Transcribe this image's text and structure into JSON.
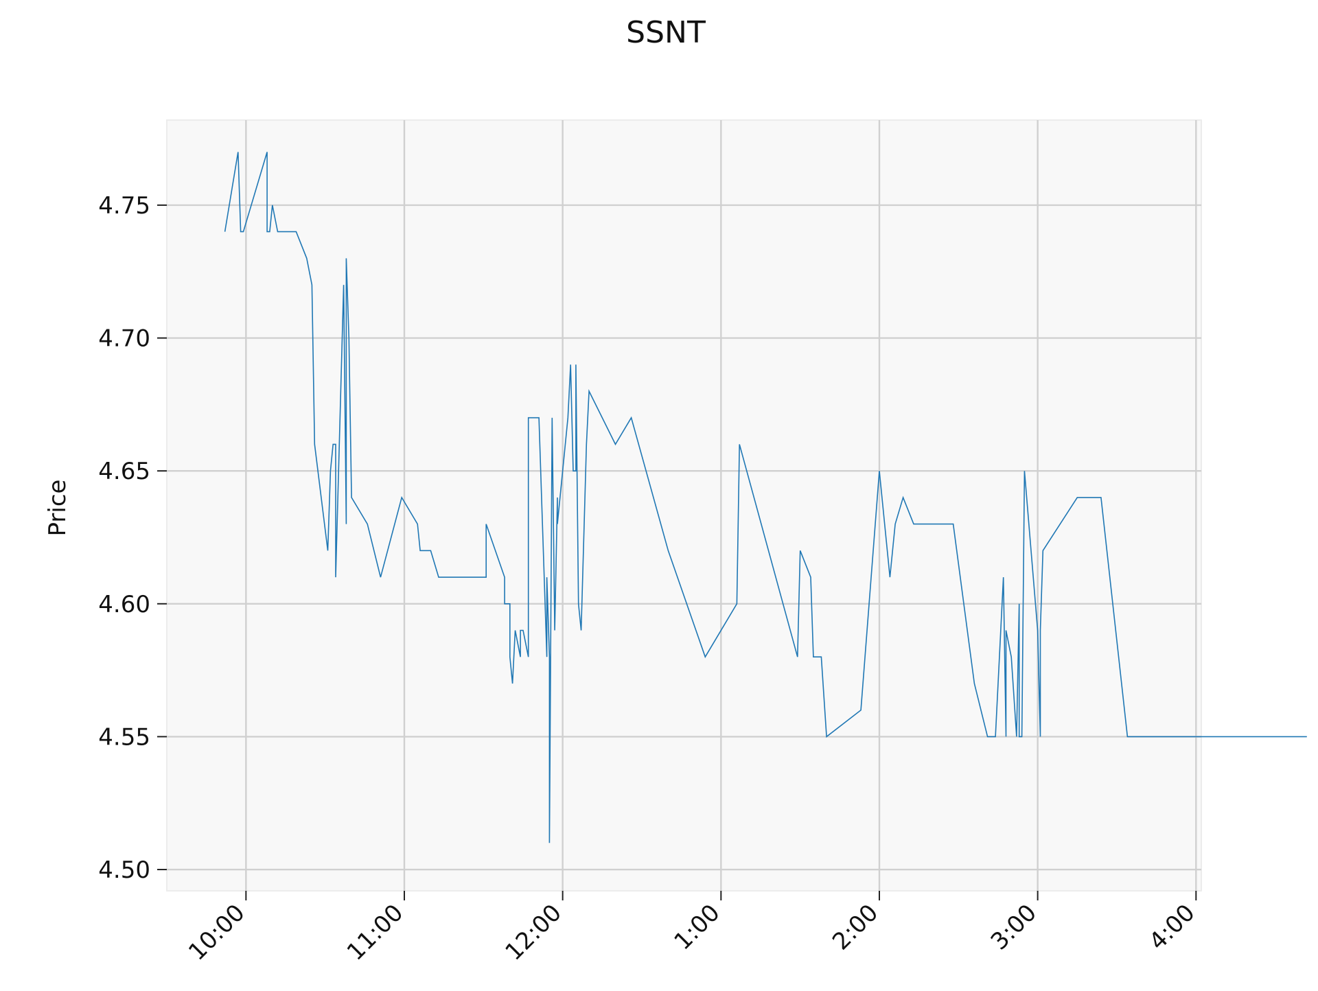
{
  "chart_data": {
    "type": "line",
    "title": "SSNT",
    "xlabel": "",
    "ylabel": "Price",
    "x_axis": "time of day",
    "ylim": [
      4.492,
      4.782
    ],
    "xlim": [
      "9:30",
      "4:02"
    ],
    "yticks": [
      4.5,
      4.55,
      4.6,
      4.65,
      4.7,
      4.75
    ],
    "ytick_labels": [
      "4.50",
      "4.55",
      "4.60",
      "4.65",
      "4.70",
      "4.75"
    ],
    "xticks": [
      "10:00",
      "11:00",
      "12:00",
      "1:00",
      "2:00",
      "3:00",
      "4:00"
    ],
    "xtick_labels": [
      "10:00",
      "11:00",
      "12:00",
      "1:00",
      "2:00",
      "3:00",
      "4:00"
    ],
    "grid": true,
    "legend": "none",
    "background_color": "#f8f8f8",
    "line_color": "#1f77b4",
    "grid_color": "#d0d0d0",
    "series": [
      {
        "x": [
          "9:52",
          "9:57",
          "9:58",
          "9:59",
          "10:08",
          "10:08",
          "10:09",
          "10:10",
          "10:12",
          "10:19",
          "10:23",
          "10:25",
          "10:26",
          "10:26",
          "10:31",
          "10:32",
          "10:33",
          "10:34",
          "10:34",
          "10:37",
          "10:38",
          "10:38",
          "10:39",
          "10:40",
          "10:46",
          "10:51",
          "10:59",
          "11:05",
          "11:06",
          "11:10",
          "11:13",
          "11:20",
          "11:31",
          "11:31",
          "11:38",
          "11:38",
          "11:40",
          "11:40",
          "11:41",
          "11:42",
          "11:42",
          "11:44",
          "11:44",
          "11:45",
          "11:47",
          "11:47",
          "11:51",
          "11:54",
          "11:54",
          "11:55",
          "11:55",
          "11:56",
          "11:57",
          "11:58",
          "11:58",
          "12:02",
          "12:03",
          "12:04",
          "12:05",
          "12:05",
          "12:06",
          "12:07",
          "12:09",
          "12:10",
          "12:20",
          "12:26",
          "12:40",
          "12:54",
          "12:54",
          "13:06",
          "13:07",
          "13:29",
          "13:30",
          "13:34",
          "13:35",
          "13:38",
          "13:40",
          "13:40",
          "13:53",
          "14:00",
          "14:04",
          "14:06",
          "14:09",
          "14:13",
          "14:21",
          "14:25",
          "14:26",
          "14:26",
          "14:28",
          "14:36",
          "14:41",
          "14:43",
          "14:44",
          "14:47",
          "14:48",
          "14:48",
          "14:50",
          "14:52",
          "14:53",
          "14:53",
          "14:54",
          "14:55",
          "15:00",
          "15:01",
          "15:01",
          "15:02",
          "15:15",
          "15:24",
          "15:34",
          "15:35",
          "15:36",
          "15:36",
          "15:37",
          "15:37",
          "15:51",
          "15:52",
          "15:52",
          "16:00",
          "16:00",
          "16:05",
          "16:07",
          "16:07",
          "16:38",
          "16:42"
        ],
        "y": [
          4.74,
          4.77,
          4.74,
          4.74,
          4.77,
          4.74,
          4.74,
          4.75,
          4.74,
          4.74,
          4.73,
          4.72,
          4.66,
          4.66,
          4.62,
          4.65,
          4.66,
          4.66,
          4.61,
          4.72,
          4.63,
          4.73,
          4.7,
          4.64,
          4.63,
          4.61,
          4.64,
          4.63,
          4.62,
          4.62,
          4.61,
          4.61,
          4.61,
          4.63,
          4.61,
          4.6,
          4.6,
          4.58,
          4.57,
          4.59,
          4.59,
          4.58,
          4.59,
          4.59,
          4.58,
          4.67,
          4.67,
          4.58,
          4.61,
          4.58,
          4.51,
          4.67,
          4.59,
          4.64,
          4.63,
          4.67,
          4.69,
          4.65,
          4.65,
          4.69,
          4.6,
          4.59,
          4.66,
          4.68,
          4.66,
          4.67,
          4.62,
          4.58,
          4.58,
          4.6,
          4.66,
          4.58,
          4.62,
          4.61,
          4.58,
          4.58,
          4.55,
          4.55,
          4.56,
          4.65,
          4.61,
          4.63,
          4.64,
          4.63,
          4.63,
          4.63,
          4.63,
          4.63,
          4.63,
          4.57,
          4.55,
          4.55,
          4.55,
          4.61,
          4.55,
          4.59,
          4.58,
          4.55,
          4.6,
          4.55,
          4.55,
          4.65,
          4.59,
          4.55,
          4.59,
          4.62,
          4.64,
          4.64,
          4.55,
          4.55,
          4.55,
          4.55,
          4.55,
          4.55,
          4.55,
          4.55,
          4.55,
          4.55,
          4.55,
          4.55,
          4.55,
          4.55,
          4.55,
          4.55
        ]
      }
    ]
  }
}
